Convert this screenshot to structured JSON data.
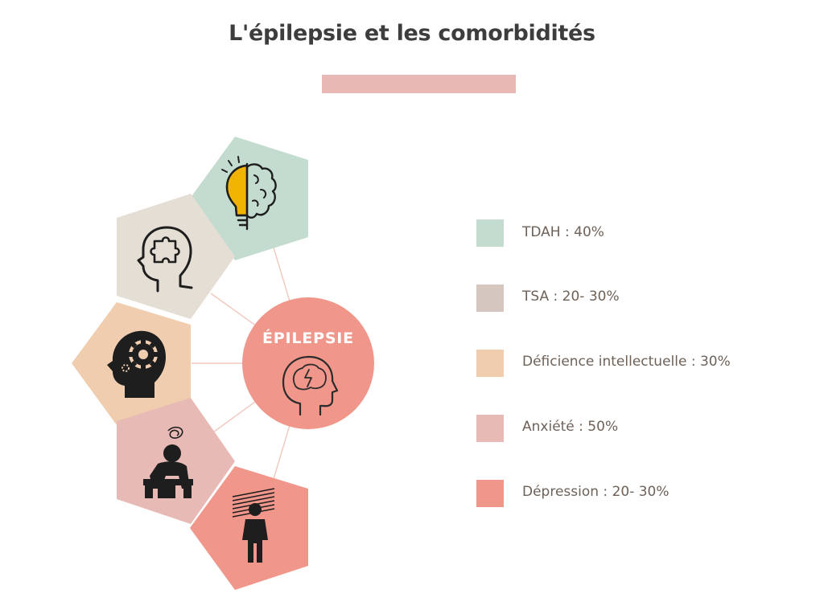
{
  "title": "L'épilepsie et les comorbidités",
  "colors": {
    "accent_bar": "#e8b8b4",
    "tdah": "#c3dccf",
    "tsa": "#e5ded5",
    "deficience": "#f1cdb0",
    "anxiete": "#e8bab6",
    "depression": "#f0968a",
    "center": "#f0968a",
    "lines": "#f2c7bd"
  },
  "center": {
    "label": "ÉPILEPSIE",
    "icon": "head-brain-lightning-icon"
  },
  "nodes": [
    {
      "id": "tdah",
      "icon": "brain-lightbulb-icon"
    },
    {
      "id": "tsa",
      "icon": "head-puzzle-icon"
    },
    {
      "id": "deficience",
      "icon": "head-gear-icon"
    },
    {
      "id": "anxiete",
      "icon": "stressed-person-icon"
    },
    {
      "id": "depression",
      "icon": "sad-person-icon"
    }
  ],
  "legend": [
    {
      "label": "TDAH : 40%",
      "color": "#c3dccf"
    },
    {
      "label": "TSA : 20- 30%",
      "color": "#d5c7c0"
    },
    {
      "label": "Déficience intellectuelle : 30%",
      "color": "#f1cdb0"
    },
    {
      "label": "Anxiété : 50%",
      "color": "#e8bab6"
    },
    {
      "label": "Dépression : 20- 30%",
      "color": "#f0968a"
    }
  ]
}
